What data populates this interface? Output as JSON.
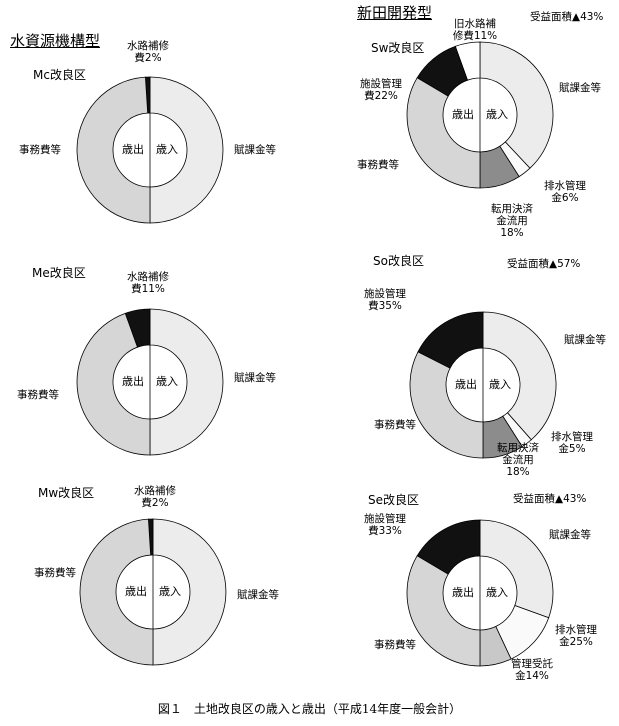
{
  "headings": [
    "水資源機構型",
    "新田開発型"
  ],
  "caption": "図１　土地改良区の歳入と歳出（平成14年度一般会計）",
  "chart_data": [
    {
      "type": "donut",
      "title": "Mc改良区",
      "revenue": {
        "label": "歳入",
        "labels": [
          "賦課金等"
        ],
        "values": [
          100
        ],
        "colors": [
          "#ececec"
        ]
      },
      "expenditure": {
        "label": "歳出",
        "labels": [
          "水路補修費2%",
          "事務費等"
        ],
        "values": [
          2,
          98
        ],
        "colors": [
          "#111111",
          "#d6d6d6"
        ]
      }
    },
    {
      "type": "donut",
      "title": "Me改良区",
      "revenue": {
        "label": "歳入",
        "labels": [
          "賦課金等"
        ],
        "values": [
          100
        ],
        "colors": [
          "#ececec"
        ]
      },
      "expenditure": {
        "label": "歳出",
        "labels": [
          "水路補修費11%",
          "事務費等"
        ],
        "values": [
          11,
          89
        ],
        "colors": [
          "#111111",
          "#d6d6d6"
        ]
      }
    },
    {
      "type": "donut",
      "title": "Mw改良区",
      "revenue": {
        "label": "歳入",
        "labels": [
          "賦課金等"
        ],
        "values": [
          100
        ],
        "colors": [
          "#ececec"
        ]
      },
      "expenditure": {
        "label": "歳出",
        "labels": [
          "水路補修費2%",
          "事務費等"
        ],
        "values": [
          2,
          98
        ],
        "colors": [
          "#111111",
          "#d6d6d6"
        ]
      }
    },
    {
      "type": "donut",
      "title": "Sw改良区",
      "note": "受益面積▲43%",
      "revenue": {
        "label": "歳入",
        "labels": [
          "賦課金等",
          "排水管理金6%",
          "転用決済金流用18%"
        ],
        "values": [
          76,
          6,
          18
        ],
        "colors": [
          "#ececec",
          "#fafafa",
          "#8c8c8c"
        ]
      },
      "expenditure": {
        "label": "歳出",
        "labels": [
          "旧水路補修費11%",
          "施設管理費22%",
          "事務費等"
        ],
        "values": [
          11,
          22,
          67
        ],
        "colors": [
          "#ffffff",
          "#111111",
          "#d6d6d6"
        ]
      }
    },
    {
      "type": "donut",
      "title": "So改良区",
      "note": "受益面積▲57%",
      "revenue": {
        "label": "歳入",
        "labels": [
          "賦課金等",
          "排水管理金5%",
          "転用決済金流用18%"
        ],
        "values": [
          77,
          5,
          18
        ],
        "colors": [
          "#ececec",
          "#fafafa",
          "#8c8c8c"
        ]
      },
      "expenditure": {
        "label": "歳出",
        "labels": [
          "施設管理費35%",
          "事務費等"
        ],
        "values": [
          35,
          65
        ],
        "colors": [
          "#111111",
          "#d6d6d6"
        ]
      }
    },
    {
      "type": "donut",
      "title": "Se改良区",
      "note": "受益面積▲43%",
      "revenue": {
        "label": "歳入",
        "labels": [
          "賦課金等",
          "排水管理金25%",
          "管理受託金14%"
        ],
        "values": [
          61,
          25,
          14
        ],
        "colors": [
          "#ececec",
          "#fafafa",
          "#c8c8c8"
        ]
      },
      "expenditure": {
        "label": "歳出",
        "labels": [
          "施設管理費33%",
          "事務費等"
        ],
        "values": [
          33,
          67
        ],
        "colors": [
          "#111111",
          "#d6d6d6"
        ]
      }
    }
  ]
}
